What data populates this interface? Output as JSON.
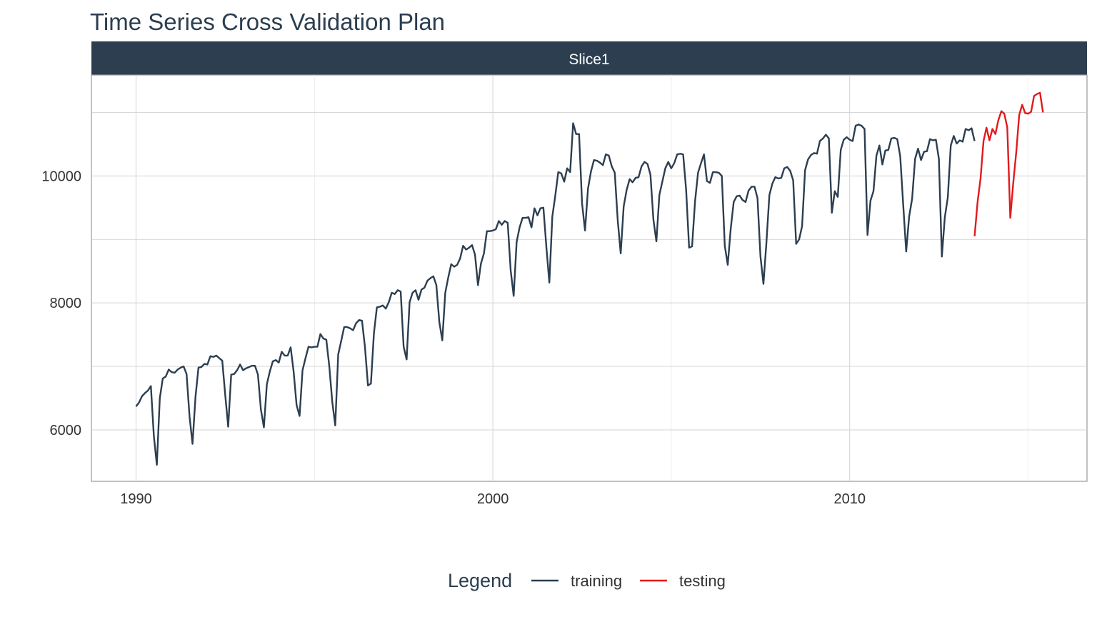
{
  "title": "Time Series Cross Validation Plan",
  "colors": {
    "training": "#2c3e50",
    "testing": "#e31a1c",
    "strip": "#2c3e50",
    "grid": "#d3d3d3"
  },
  "chart_data": {
    "type": "line",
    "title": "Time Series Cross Validation Plan",
    "facet": "Slice1",
    "xlabel": "",
    "ylabel": "",
    "x_ticks": [
      "1990",
      "2000",
      "2010"
    ],
    "y_ticks": [
      "6000",
      "8000",
      "10000"
    ],
    "xlim": [
      1988.75,
      2016.65
    ],
    "ylim": [
      5190,
      11590
    ],
    "grid": true,
    "legend": {
      "title": "Legend",
      "position": "bottom",
      "entries": [
        "training",
        "testing"
      ]
    },
    "series": [
      {
        "name": "training",
        "x_start": 1990.0,
        "x_step": 0.08333,
        "values": [
          6370,
          6430,
          6530,
          6580,
          6620,
          6690,
          5900,
          5450,
          6500,
          6810,
          6840,
          6950,
          6910,
          6900,
          6950,
          6980,
          7000,
          6880,
          6210,
          5780,
          6520,
          6980,
          6990,
          7040,
          7030,
          7160,
          7150,
          7170,
          7130,
          7090,
          6550,
          6050,
          6870,
          6880,
          6940,
          7030,
          6940,
          6970,
          6990,
          7010,
          7010,
          6870,
          6320,
          6040,
          6720,
          6920,
          7080,
          7100,
          7060,
          7230,
          7170,
          7170,
          7300,
          6920,
          6390,
          6220,
          6940,
          7130,
          7310,
          7300,
          7310,
          7310,
          7510,
          7440,
          7420,
          7000,
          6440,
          6070,
          7190,
          7400,
          7620,
          7620,
          7600,
          7570,
          7680,
          7730,
          7720,
          7300,
          6700,
          6730,
          7520,
          7930,
          7940,
          7960,
          7910,
          8010,
          8160,
          8140,
          8200,
          8180,
          7310,
          7110,
          8010,
          8160,
          8200,
          8050,
          8210,
          8240,
          8350,
          8390,
          8420,
          8280,
          7700,
          7410,
          8160,
          8400,
          8610,
          8570,
          8600,
          8700,
          8900,
          8840,
          8870,
          8910,
          8760,
          8280,
          8620,
          8780,
          9130,
          9130,
          9140,
          9160,
          9290,
          9230,
          9290,
          9260,
          8510,
          8110,
          8960,
          9190,
          9340,
          9340,
          9350,
          9190,
          9490,
          9380,
          9490,
          9500,
          8880,
          8320,
          9360,
          9690,
          10060,
          10040,
          9910,
          10120,
          10060,
          10830,
          10660,
          10660,
          9570,
          9140,
          9800,
          10070,
          10250,
          10240,
          10210,
          10170,
          10340,
          10320,
          10150,
          10050,
          9300,
          8780,
          9520,
          9780,
          9950,
          9900,
          9970,
          9980,
          10150,
          10220,
          10190,
          10020,
          9310,
          8970,
          9700,
          9910,
          10120,
          10220,
          10120,
          10200,
          10340,
          10350,
          10340,
          9780,
          8870,
          8890,
          9600,
          10050,
          10200,
          10340,
          9920,
          9890,
          10060,
          10060,
          10050,
          10000,
          8900,
          8600,
          9170,
          9590,
          9680,
          9690,
          9620,
          9590,
          9770,
          9830,
          9830,
          9650,
          8730,
          8300,
          8950,
          9700,
          9880,
          9980,
          9960,
          9970,
          10120,
          10140,
          10080,
          9930,
          8930,
          9000,
          9210,
          10090,
          10260,
          10330,
          10360,
          10350,
          10550,
          10590,
          10650,
          10590,
          9420,
          9760,
          9670,
          10410,
          10570,
          10610,
          10570,
          10550,
          10790,
          10810,
          10790,
          10740,
          9070,
          9610,
          9760,
          10320,
          10480,
          10180,
          10400,
          10410,
          10590,
          10600,
          10580,
          10310,
          9550,
          8810,
          9360,
          9640,
          10270,
          10430,
          10250,
          10380,
          10390,
          10580,
          10560,
          10570,
          10270,
          8730,
          9350,
          9660,
          10480,
          10630,
          10510,
          10560,
          10540,
          10740,
          10720,
          10750,
          10550
        ]
      },
      {
        "name": "testing",
        "x_start": 2013.5,
        "x_step": 0.08333,
        "values": [
          9050,
          9590,
          9960,
          10550,
          10760,
          10560,
          10740,
          10660,
          10880,
          11020,
          10980,
          10760,
          9340,
          9890,
          10370,
          10960,
          11120,
          10990,
          10980,
          11010,
          11260,
          11290,
          11310,
          11000
        ]
      }
    ]
  }
}
